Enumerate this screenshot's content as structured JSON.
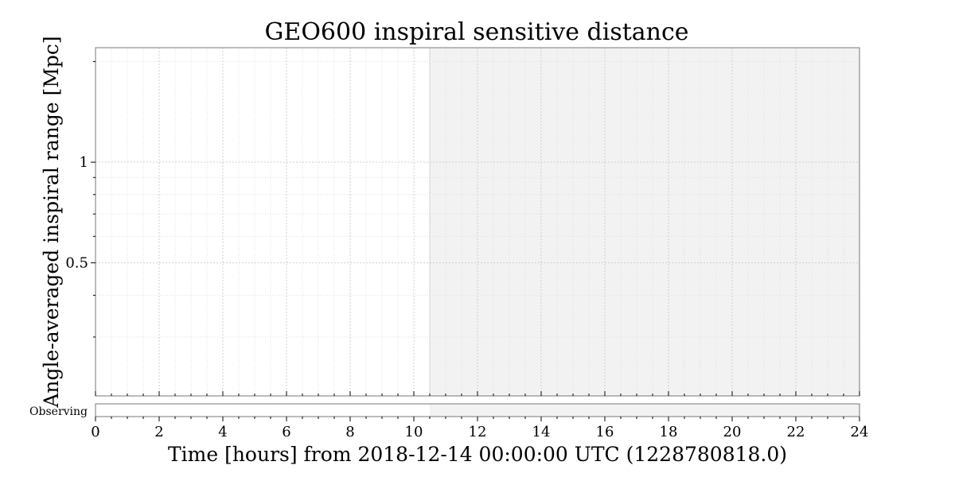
{
  "chart_data": {
    "type": "line",
    "title": "GEO600 inspiral sensitive distance",
    "xlabel": "Time [hours] from 2018-12-14 00:00:00 UTC (1228780818.0)",
    "ylabel": "Angle-averaged inspiral range [Mpc]",
    "xlim": [
      0,
      24
    ],
    "xticks": [
      0,
      2,
      4,
      6,
      8,
      10,
      12,
      14,
      16,
      18,
      20,
      22,
      24
    ],
    "yscale": "log",
    "ylim": [
      0.2,
      2.2
    ],
    "yticks": [
      {
        "value": 0.5,
        "label": "0.5"
      },
      {
        "value": 1,
        "label": "1"
      }
    ],
    "grid": true,
    "series": [],
    "future_region": {
      "from": 10.5,
      "to": 24,
      "color": "#f2f2f2"
    },
    "segments": {
      "label": "Observing",
      "active": [],
      "future_from": 10.5
    }
  }
}
